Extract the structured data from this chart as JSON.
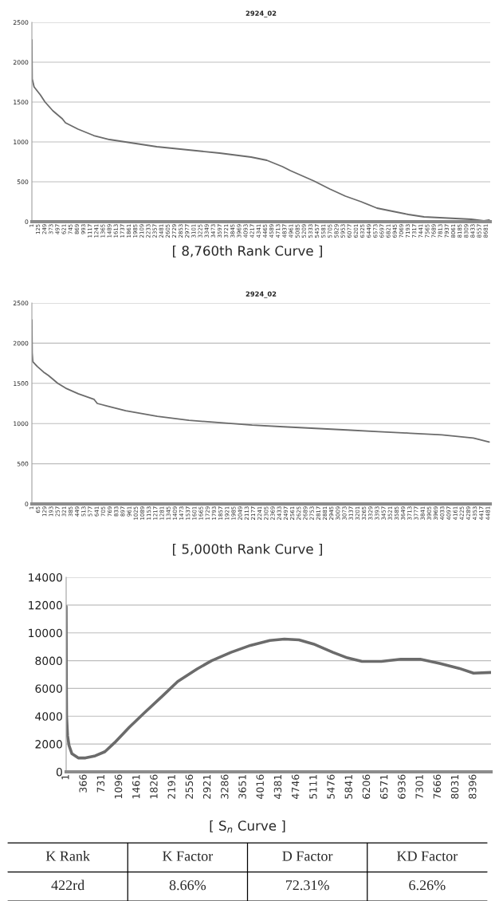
{
  "chart_data": [
    {
      "type": "line",
      "title": "2924_02",
      "annotations": [
        "[ 8,760th Rank Curve ]"
      ],
      "grid": "y",
      "xlim": [
        1,
        8760
      ],
      "ylim": [
        0,
        2500
      ],
      "yticks": [
        0,
        500,
        1000,
        1500,
        2000,
        2500
      ],
      "xticks": [
        1,
        125,
        249,
        373,
        497,
        621,
        745,
        869,
        993,
        1117,
        1241,
        1365,
        1489,
        1613,
        1737,
        1861,
        1985,
        2109,
        2233,
        2357,
        2481,
        2605,
        2729,
        2853,
        2977,
        3101,
        3225,
        3349,
        3473,
        3597,
        3721,
        3845,
        3969,
        4093,
        4217,
        4341,
        4465,
        4589,
        4713,
        4837,
        4961,
        5085,
        5209,
        5333,
        5457,
        5581,
        5705,
        5829,
        5953,
        6077,
        6201,
        6325,
        6449,
        6573,
        6697,
        6821,
        6945,
        7069,
        7193,
        7317,
        7441,
        7565,
        7689,
        7813,
        7937,
        8061,
        8185,
        8309,
        8433,
        8557,
        8681
      ],
      "series": [
        {
          "color": "#6b6b6b",
          "x": [
            1,
            7,
            43,
            163,
            253,
            403,
            583,
            643,
            884,
            1185,
            1485,
            1786,
            2387,
            2988,
            3589,
            4190,
            4490,
            4791,
            4941,
            5392,
            5693,
            5993,
            6294,
            6595,
            6895,
            7196,
            7496,
            7797,
            8097,
            8398,
            8639,
            8740
          ],
          "values": [
            2280,
            1790,
            1690,
            1590,
            1500,
            1390,
            1290,
            1240,
            1160,
            1080,
            1030,
            1000,
            940,
            900,
            860,
            810,
            770,
            690,
            640,
            510,
            410,
            320,
            250,
            170,
            130,
            90,
            60,
            50,
            40,
            30,
            10,
            20
          ]
        }
      ]
    },
    {
      "type": "line",
      "title": "2924_02",
      "annotations": [
        "[ 5,000th Rank Curve ]"
      ],
      "grid": "y",
      "xlim": [
        1,
        4500
      ],
      "ylim": [
        0,
        2500
      ],
      "yticks": [
        0,
        500,
        1000,
        1500,
        2000,
        2500
      ],
      "xticks": [
        1,
        65,
        129,
        193,
        257,
        321,
        385,
        449,
        513,
        577,
        641,
        705,
        769,
        833,
        897,
        961,
        1025,
        1089,
        1153,
        1217,
        1281,
        1345,
        1409,
        1473,
        1537,
        1601,
        1665,
        1729,
        1793,
        1857,
        1921,
        1985,
        2049,
        2113,
        2177,
        2241,
        2305,
        2369,
        2433,
        2497,
        2561,
        2625,
        2689,
        2753,
        2817,
        2881,
        2945,
        3009,
        3073,
        3137,
        3201,
        3265,
        3329,
        3393,
        3457,
        3521,
        3585,
        3649,
        3713,
        3777,
        3841,
        3905,
        3969,
        4033,
        4097,
        4161,
        4225,
        4289,
        4353,
        4417,
        4481
      ],
      "series": [
        {
          "color": "#6b6b6b",
          "x": [
            1,
            4,
            10,
            54,
            116,
            162,
            209,
            255,
            333,
            457,
            612,
            643,
            767,
            922,
            1232,
            1543,
            1853,
            2163,
            2473,
            2784,
            3094,
            3404,
            3714,
            4025,
            4335,
            4490
          ],
          "values": [
            2290,
            1880,
            1770,
            1710,
            1640,
            1600,
            1550,
            1500,
            1440,
            1370,
            1300,
            1250,
            1210,
            1160,
            1090,
            1040,
            1010,
            980,
            960,
            940,
            920,
            900,
            880,
            860,
            820,
            770
          ]
        }
      ]
    },
    {
      "type": "line",
      "annotations": [
        "[ S$_{n}$ Curve ]"
      ],
      "grid": "y",
      "xlim": [
        1,
        8760
      ],
      "ylim": [
        0,
        14000
      ],
      "yticks": [
        0,
        2000,
        4000,
        6000,
        8000,
        10000,
        12000,
        14000
      ],
      "xticks": [
        1,
        366,
        731,
        1096,
        1461,
        1826,
        2191,
        2556,
        2921,
        3286,
        3651,
        4016,
        4381,
        4746,
        5111,
        5476,
        5841,
        6206,
        6571,
        6936,
        7301,
        7666,
        8031,
        8396
      ],
      "series": [
        {
          "color": "#6b6b6b",
          "x": [
            1,
            5,
            10,
            30,
            60,
            120,
            250,
            400,
            600,
            800,
            1000,
            1300,
            1600,
            2000,
            2300,
            2700,
            3000,
            3400,
            3800,
            4200,
            4500,
            4800,
            5100,
            5500,
            5800,
            6100,
            6500,
            6900,
            7300,
            7700,
            8100,
            8400,
            8760
          ],
          "values": [
            11900,
            6800,
            4000,
            2600,
            1900,
            1300,
            1000,
            1000,
            1150,
            1450,
            2100,
            3200,
            4200,
            5500,
            6500,
            7400,
            8000,
            8600,
            9100,
            9450,
            9550,
            9500,
            9200,
            8600,
            8200,
            7950,
            7950,
            8100,
            8100,
            7800,
            7450,
            7100,
            7150
          ]
        }
      ]
    },
    {
      "type": "other",
      "annotations": [
        "K Rank",
        "K Factor",
        "D Factor",
        "KD Factor",
        "422rd",
        "8.66%",
        "72.31%",
        "6.26%"
      ]
    }
  ]
}
